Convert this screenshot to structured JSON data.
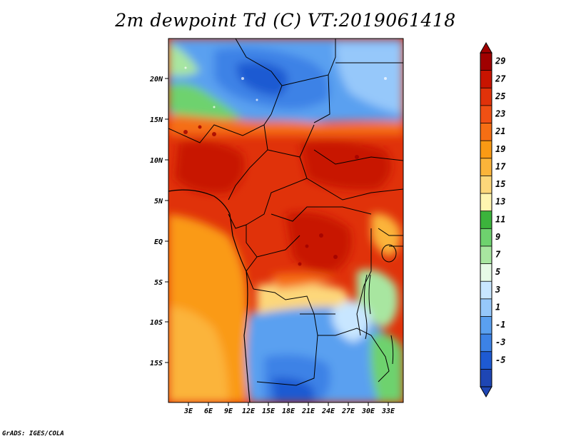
{
  "title": "2m dewpoint Td (C) VT:2019061418",
  "footer": "GrADS: IGES/COLA",
  "map": {
    "lat_labels": [
      "20N",
      "15N",
      "10N",
      "5N",
      "EQ",
      "5S",
      "10S",
      "15S"
    ],
    "lon_labels": [
      "3E",
      "6E",
      "9E",
      "12E",
      "15E",
      "18E",
      "21E",
      "24E",
      "27E",
      "30E",
      "33E"
    ]
  },
  "colorbar": {
    "labels": [
      "29",
      "27",
      "25",
      "23",
      "21",
      "19",
      "17",
      "15",
      "13",
      "11",
      "9",
      "7",
      "5",
      "3",
      "1",
      "-1",
      "-3",
      "-5"
    ],
    "colors": [
      "#a00000",
      "#c81400",
      "#e0320a",
      "#f05014",
      "#f56e14",
      "#fa9a14",
      "#fbb43a",
      "#fdd77a",
      "#fff5b0",
      "#3cb43c",
      "#6ed26e",
      "#a8e6a0",
      "#e6fae6",
      "#c8e6ff",
      "#96c8fa",
      "#5aa0f0",
      "#3c82e6",
      "#1e5ad2",
      "#1e46b4"
    ]
  }
}
